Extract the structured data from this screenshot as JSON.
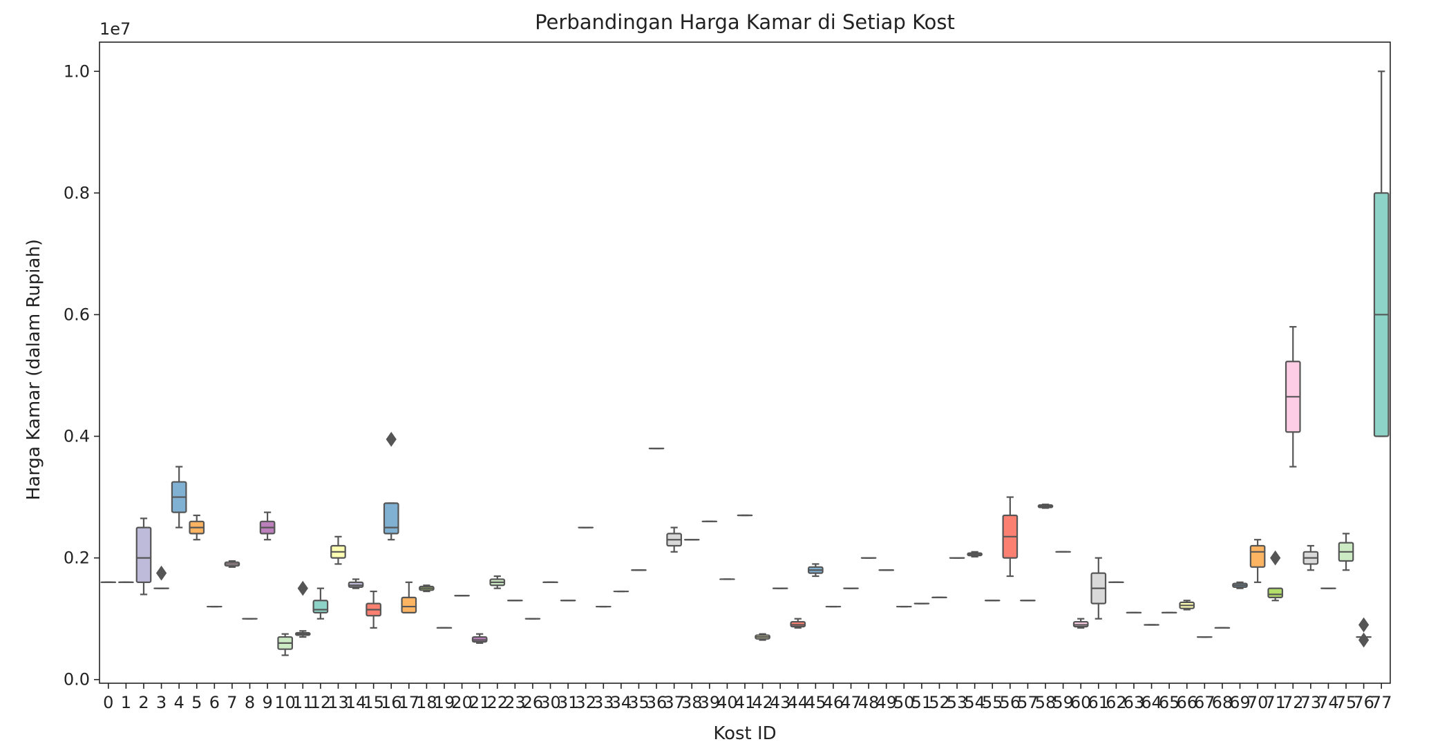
{
  "chart_data": {
    "type": "box",
    "title": "Perbandingan Harga Kamar di Setiap Kost",
    "xlabel": "Kost ID",
    "ylabel": "Harga Kamar (dalam Rupiah)",
    "y_multiplier_label": "1e7",
    "ylim": [
      -0.006,
      1.048
    ],
    "yticks": [
      0.0,
      0.2,
      0.4,
      0.6,
      0.8,
      1.0
    ],
    "ytick_labels": [
      "0.0",
      "0.2",
      "0.4",
      "0.6",
      "0.8",
      "1.0"
    ],
    "grid": false,
    "legend": "none",
    "categories": [
      "0",
      "1",
      "2",
      "3",
      "4",
      "5",
      "6",
      "7",
      "8",
      "9",
      "10",
      "11",
      "12",
      "13",
      "14",
      "15",
      "16",
      "17",
      "18",
      "19",
      "20",
      "21",
      "22",
      "23",
      "26",
      "30",
      "31",
      "32",
      "33",
      "34",
      "35",
      "36",
      "37",
      "38",
      "39",
      "40",
      "41",
      "42",
      "43",
      "44",
      "45",
      "46",
      "47",
      "48",
      "49",
      "50",
      "51",
      "52",
      "53",
      "54",
      "55",
      "56",
      "57",
      "58",
      "59",
      "60",
      "61",
      "62",
      "63",
      "64",
      "65",
      "66",
      "67",
      "68",
      "69",
      "70",
      "71",
      "72",
      "73",
      "74",
      "75",
      "76",
      "77"
    ],
    "tick_labels": [
      "0",
      "1",
      "2",
      "3",
      "4",
      "5",
      "6",
      "7",
      "8",
      "9",
      "10",
      "11",
      "12",
      "13",
      "14",
      "15",
      "16",
      "17",
      "18",
      "19",
      "20",
      "21",
      "22",
      "23",
      "26",
      "30",
      "31",
      "32",
      "33",
      "34",
      "35",
      "36",
      "37",
      "38",
      "39",
      "40",
      "41",
      "42",
      "43",
      "44",
      "45",
      "46",
      "47",
      "48",
      "49",
      "50",
      "51",
      "52",
      "53",
      "54",
      "55",
      "56",
      "57",
      "58",
      "59",
      "60",
      "61",
      "62",
      "63",
      "64",
      "65",
      "66",
      "67",
      "68",
      "69",
      "70",
      "71",
      "72",
      "73",
      "74",
      "75",
      "76",
      "77"
    ],
    "palette": [
      "#8dd3c7",
      "#ffffb3",
      "#bebada",
      "#fb8072",
      "#80b1d3",
      "#fdb462",
      "#b3de69",
      "#fccde5",
      "#d9d9d9",
      "#bc80bd",
      "#ccebc5",
      "#ffed6f"
    ],
    "boxes": [
      {
        "min": 0.16,
        "q1": 0.16,
        "median": 0.16,
        "q3": 0.16,
        "max": 0.16,
        "outliers": []
      },
      {
        "min": 0.16,
        "q1": 0.16,
        "median": 0.16,
        "q3": 0.16,
        "max": 0.16,
        "outliers": []
      },
      {
        "min": 0.14,
        "q1": 0.16,
        "median": 0.2,
        "q3": 0.25,
        "max": 0.265,
        "outliers": []
      },
      {
        "min": 0.15,
        "q1": 0.15,
        "median": 0.15,
        "q3": 0.15,
        "max": 0.15,
        "outliers": [
          0.175
        ]
      },
      {
        "min": 0.25,
        "q1": 0.275,
        "median": 0.3,
        "q3": 0.325,
        "max": 0.35,
        "outliers": []
      },
      {
        "min": 0.23,
        "q1": 0.24,
        "median": 0.25,
        "q3": 0.26,
        "max": 0.27,
        "outliers": []
      },
      {
        "min": 0.12,
        "q1": 0.12,
        "median": 0.12,
        "q3": 0.12,
        "max": 0.12,
        "outliers": []
      },
      {
        "min": 0.185,
        "q1": 0.187,
        "median": 0.19,
        "q3": 0.193,
        "max": 0.195,
        "outliers": []
      },
      {
        "min": 0.1,
        "q1": 0.1,
        "median": 0.1,
        "q3": 0.1,
        "max": 0.1,
        "outliers": []
      },
      {
        "min": 0.23,
        "q1": 0.24,
        "median": 0.25,
        "q3": 0.26,
        "max": 0.275,
        "outliers": []
      },
      {
        "min": 0.04,
        "q1": 0.05,
        "median": 0.06,
        "q3": 0.07,
        "max": 0.075,
        "outliers": []
      },
      {
        "min": 0.07,
        "q1": 0.073,
        "median": 0.075,
        "q3": 0.077,
        "max": 0.08,
        "outliers": [
          0.15
        ]
      },
      {
        "min": 0.1,
        "q1": 0.11,
        "median": 0.115,
        "q3": 0.13,
        "max": 0.15,
        "outliers": []
      },
      {
        "min": 0.19,
        "q1": 0.2,
        "median": 0.21,
        "q3": 0.22,
        "max": 0.235,
        "outliers": []
      },
      {
        "min": 0.15,
        "q1": 0.152,
        "median": 0.155,
        "q3": 0.16,
        "max": 0.165,
        "outliers": []
      },
      {
        "min": 0.085,
        "q1": 0.105,
        "median": 0.115,
        "q3": 0.125,
        "max": 0.145,
        "outliers": []
      },
      {
        "min": 0.23,
        "q1": 0.24,
        "median": 0.25,
        "q3": 0.29,
        "max": 0.29,
        "outliers": [
          0.395
        ]
      },
      {
        "min": 0.11,
        "q1": 0.11,
        "median": 0.12,
        "q3": 0.135,
        "max": 0.16,
        "outliers": []
      },
      {
        "min": 0.145,
        "q1": 0.147,
        "median": 0.15,
        "q3": 0.153,
        "max": 0.155,
        "outliers": []
      },
      {
        "min": 0.085,
        "q1": 0.085,
        "median": 0.085,
        "q3": 0.085,
        "max": 0.085,
        "outliers": []
      },
      {
        "min": 0.138,
        "q1": 0.138,
        "median": 0.138,
        "q3": 0.138,
        "max": 0.138,
        "outliers": []
      },
      {
        "min": 0.06,
        "q1": 0.062,
        "median": 0.065,
        "q3": 0.07,
        "max": 0.075,
        "outliers": []
      },
      {
        "min": 0.15,
        "q1": 0.155,
        "median": 0.16,
        "q3": 0.165,
        "max": 0.17,
        "outliers": []
      },
      {
        "min": 0.13,
        "q1": 0.13,
        "median": 0.13,
        "q3": 0.13,
        "max": 0.13,
        "outliers": []
      },
      {
        "min": 0.1,
        "q1": 0.1,
        "median": 0.1,
        "q3": 0.1,
        "max": 0.1,
        "outliers": []
      },
      {
        "min": 0.16,
        "q1": 0.16,
        "median": 0.16,
        "q3": 0.16,
        "max": 0.16,
        "outliers": []
      },
      {
        "min": 0.13,
        "q1": 0.13,
        "median": 0.13,
        "q3": 0.13,
        "max": 0.13,
        "outliers": []
      },
      {
        "min": 0.25,
        "q1": 0.25,
        "median": 0.25,
        "q3": 0.25,
        "max": 0.25,
        "outliers": []
      },
      {
        "min": 0.12,
        "q1": 0.12,
        "median": 0.12,
        "q3": 0.12,
        "max": 0.12,
        "outliers": []
      },
      {
        "min": 0.145,
        "q1": 0.145,
        "median": 0.145,
        "q3": 0.145,
        "max": 0.145,
        "outliers": []
      },
      {
        "min": 0.18,
        "q1": 0.18,
        "median": 0.18,
        "q3": 0.18,
        "max": 0.18,
        "outliers": []
      },
      {
        "min": 0.38,
        "q1": 0.38,
        "median": 0.38,
        "q3": 0.38,
        "max": 0.38,
        "outliers": []
      },
      {
        "min": 0.21,
        "q1": 0.22,
        "median": 0.23,
        "q3": 0.24,
        "max": 0.25,
        "outliers": []
      },
      {
        "min": 0.23,
        "q1": 0.23,
        "median": 0.23,
        "q3": 0.23,
        "max": 0.23,
        "outliers": []
      },
      {
        "min": 0.26,
        "q1": 0.26,
        "median": 0.26,
        "q3": 0.26,
        "max": 0.26,
        "outliers": []
      },
      {
        "min": 0.165,
        "q1": 0.165,
        "median": 0.165,
        "q3": 0.165,
        "max": 0.165,
        "outliers": []
      },
      {
        "min": 0.27,
        "q1": 0.27,
        "median": 0.27,
        "q3": 0.27,
        "max": 0.27,
        "outliers": []
      },
      {
        "min": 0.065,
        "q1": 0.067,
        "median": 0.07,
        "q3": 0.073,
        "max": 0.075,
        "outliers": []
      },
      {
        "min": 0.15,
        "q1": 0.15,
        "median": 0.15,
        "q3": 0.15,
        "max": 0.15,
        "outliers": []
      },
      {
        "min": 0.085,
        "q1": 0.087,
        "median": 0.09,
        "q3": 0.095,
        "max": 0.1,
        "outliers": []
      },
      {
        "min": 0.17,
        "q1": 0.175,
        "median": 0.18,
        "q3": 0.185,
        "max": 0.19,
        "outliers": []
      },
      {
        "min": 0.12,
        "q1": 0.12,
        "median": 0.12,
        "q3": 0.12,
        "max": 0.12,
        "outliers": []
      },
      {
        "min": 0.15,
        "q1": 0.15,
        "median": 0.15,
        "q3": 0.15,
        "max": 0.15,
        "outliers": []
      },
      {
        "min": 0.2,
        "q1": 0.2,
        "median": 0.2,
        "q3": 0.2,
        "max": 0.2,
        "outliers": []
      },
      {
        "min": 0.18,
        "q1": 0.18,
        "median": 0.18,
        "q3": 0.18,
        "max": 0.18,
        "outliers": []
      },
      {
        "min": 0.12,
        "q1": 0.12,
        "median": 0.12,
        "q3": 0.12,
        "max": 0.12,
        "outliers": []
      },
      {
        "min": 0.125,
        "q1": 0.125,
        "median": 0.125,
        "q3": 0.125,
        "max": 0.125,
        "outliers": []
      },
      {
        "min": 0.135,
        "q1": 0.135,
        "median": 0.135,
        "q3": 0.135,
        "max": 0.135,
        "outliers": []
      },
      {
        "min": 0.2,
        "q1": 0.2,
        "median": 0.2,
        "q3": 0.2,
        "max": 0.2,
        "outliers": []
      },
      {
        "min": 0.202,
        "q1": 0.204,
        "median": 0.206,
        "q3": 0.208,
        "max": 0.21,
        "outliers": []
      },
      {
        "min": 0.13,
        "q1": 0.13,
        "median": 0.13,
        "q3": 0.13,
        "max": 0.13,
        "outliers": []
      },
      {
        "min": 0.17,
        "q1": 0.2,
        "median": 0.235,
        "q3": 0.27,
        "max": 0.3,
        "outliers": []
      },
      {
        "min": 0.13,
        "q1": 0.13,
        "median": 0.13,
        "q3": 0.13,
        "max": 0.13,
        "outliers": []
      },
      {
        "min": 0.282,
        "q1": 0.283,
        "median": 0.285,
        "q3": 0.287,
        "max": 0.288,
        "outliers": []
      },
      {
        "min": 0.21,
        "q1": 0.21,
        "median": 0.21,
        "q3": 0.21,
        "max": 0.21,
        "outliers": []
      },
      {
        "min": 0.085,
        "q1": 0.087,
        "median": 0.09,
        "q3": 0.095,
        "max": 0.1,
        "outliers": []
      },
      {
        "min": 0.1,
        "q1": 0.125,
        "median": 0.15,
        "q3": 0.175,
        "max": 0.2,
        "outliers": []
      },
      {
        "min": 0.16,
        "q1": 0.16,
        "median": 0.16,
        "q3": 0.16,
        "max": 0.16,
        "outliers": []
      },
      {
        "min": 0.11,
        "q1": 0.11,
        "median": 0.11,
        "q3": 0.11,
        "max": 0.11,
        "outliers": []
      },
      {
        "min": 0.09,
        "q1": 0.09,
        "median": 0.09,
        "q3": 0.09,
        "max": 0.09,
        "outliers": []
      },
      {
        "min": 0.11,
        "q1": 0.11,
        "median": 0.11,
        "q3": 0.11,
        "max": 0.11,
        "outliers": []
      },
      {
        "min": 0.115,
        "q1": 0.117,
        "median": 0.122,
        "q3": 0.127,
        "max": 0.13,
        "outliers": []
      },
      {
        "min": 0.07,
        "q1": 0.07,
        "median": 0.07,
        "q3": 0.07,
        "max": 0.07,
        "outliers": []
      },
      {
        "min": 0.085,
        "q1": 0.085,
        "median": 0.085,
        "q3": 0.085,
        "max": 0.085,
        "outliers": []
      },
      {
        "min": 0.15,
        "q1": 0.152,
        "median": 0.155,
        "q3": 0.158,
        "max": 0.16,
        "outliers": []
      },
      {
        "min": 0.16,
        "q1": 0.185,
        "median": 0.21,
        "q3": 0.22,
        "max": 0.23,
        "outliers": []
      },
      {
        "min": 0.13,
        "q1": 0.135,
        "median": 0.14,
        "q3": 0.15,
        "max": 0.15,
        "outliers": [
          0.2
        ]
      },
      {
        "min": 0.35,
        "q1": 0.407,
        "median": 0.465,
        "q3": 0.523,
        "max": 0.58,
        "outliers": []
      },
      {
        "min": 0.18,
        "q1": 0.19,
        "median": 0.2,
        "q3": 0.21,
        "max": 0.22,
        "outliers": []
      },
      {
        "min": 0.15,
        "q1": 0.15,
        "median": 0.15,
        "q3": 0.15,
        "max": 0.15,
        "outliers": []
      },
      {
        "min": 0.18,
        "q1": 0.195,
        "median": 0.21,
        "q3": 0.225,
        "max": 0.24,
        "outliers": []
      },
      {
        "min": 0.07,
        "q1": 0.07,
        "median": 0.07,
        "q3": 0.07,
        "max": 0.07,
        "outliers": [
          0.09,
          0.065
        ]
      },
      {
        "min": 0.4,
        "q1": 0.4,
        "median": 0.6,
        "q3": 0.8,
        "max": 1.0,
        "outliers": []
      }
    ]
  }
}
